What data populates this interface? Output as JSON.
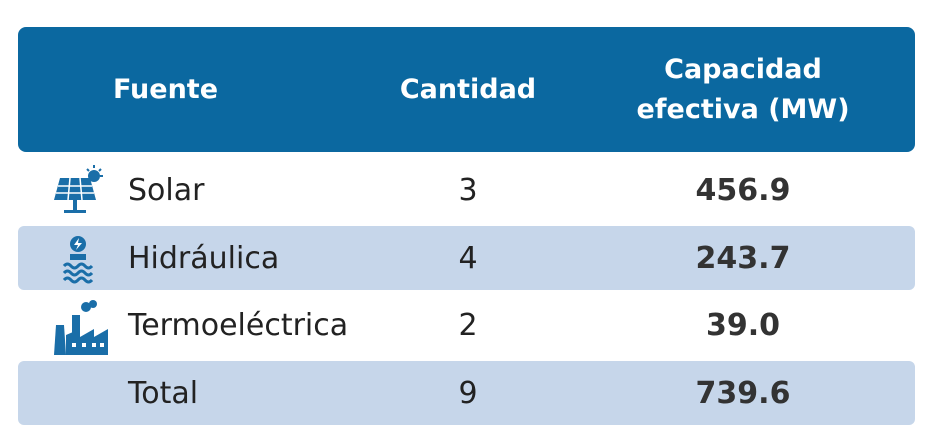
{
  "table": {
    "header": [
      "Fuente",
      "Cantidad",
      "Capacidad efectiva (MW)"
    ],
    "rows": [
      [
        "Solar",
        "3",
        "456.9"
      ],
      [
        "Hidráulica",
        "4",
        "243.7"
      ],
      [
        "Termoeléctrica",
        "2",
        "39.0"
      ],
      [
        "Total",
        "9",
        "739.6"
      ]
    ]
  }
}
